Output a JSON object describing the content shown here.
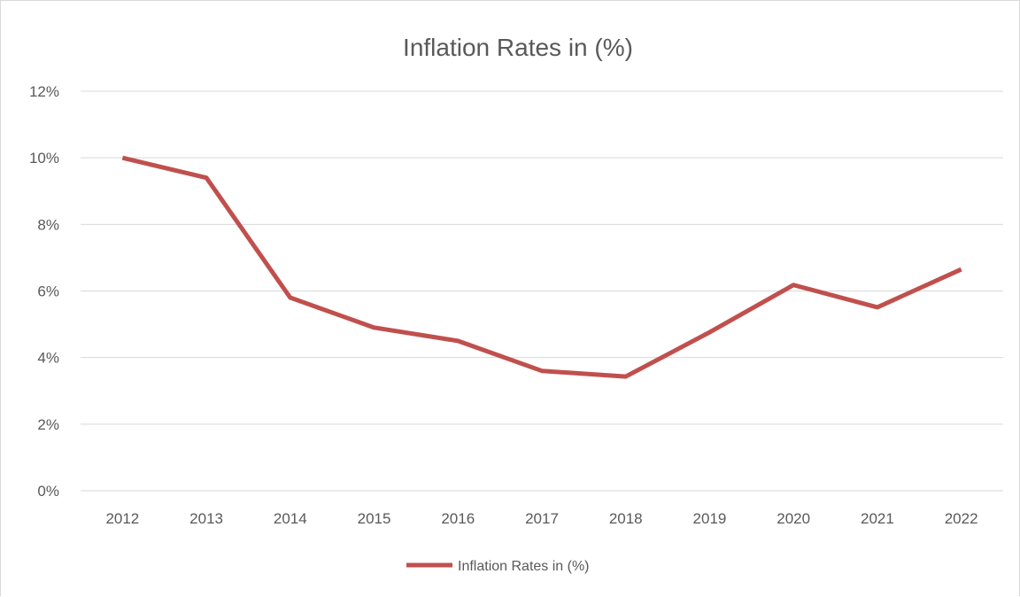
{
  "chart_data": {
    "type": "line",
    "title": "Inflation Rates  in (%)",
    "xlabel": "",
    "ylabel": "",
    "categories": [
      "2012",
      "2013",
      "2014",
      "2015",
      "2016",
      "2017",
      "2018",
      "2019",
      "2020",
      "2021",
      "2022"
    ],
    "series": [
      {
        "name": "Inflation Rates  in (%)",
        "values": [
          10.0,
          9.4,
          5.8,
          4.9,
          4.5,
          3.6,
          3.43,
          4.76,
          6.18,
          5.51,
          6.65
        ],
        "color": "#c0504d"
      }
    ],
    "ylim": [
      0,
      12
    ],
    "yticks": [
      "0%",
      "2%",
      "4%",
      "6%",
      "8%",
      "10%",
      "12%"
    ],
    "grid": true,
    "legend": "bottom"
  }
}
